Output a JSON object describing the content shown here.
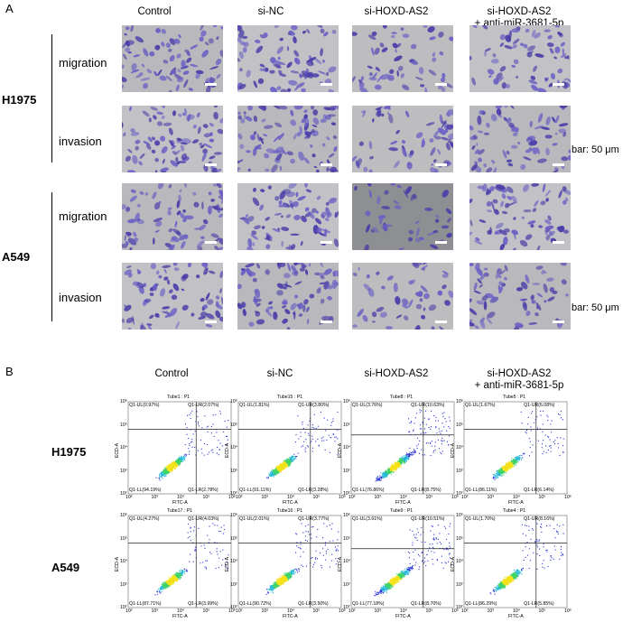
{
  "panelA": {
    "letter": "A",
    "columns": [
      "Control",
      "si-NC",
      "si-HOXD-AS2",
      "si-HOXD-AS2\n+ anti-miR-3681-5p"
    ],
    "column_line1": [
      "Control",
      "si-NC",
      "si-HOXD-AS2",
      "si-HOXD-AS2"
    ],
    "column_line2": [
      "",
      "",
      "",
      "+ anti-miR-3681-5p"
    ],
    "cell_lines": [
      "H1975",
      "A549"
    ],
    "assays": [
      "migration",
      "invasion"
    ],
    "bar_note": "bar: 50 μm",
    "tones": [
      [
        0.55,
        0.6,
        0.3,
        0.4
      ],
      [
        0.6,
        0.7,
        0.35,
        0.5
      ],
      [
        0.55,
        0.5,
        0.15,
        0.5
      ],
      [
        0.55,
        0.6,
        0.2,
        0.45
      ]
    ]
  },
  "panelB": {
    "letter": "B",
    "columns": [
      "Control",
      "si-NC",
      "si-HOXD-AS2",
      "si-HOXD-AS2\n+ anti-miR-3681-5p"
    ],
    "column_line1": [
      "Control",
      "si-NC",
      "si-HOXD-AS2",
      "si-HOXD-AS2"
    ],
    "column_line2": [
      "",
      "",
      "",
      "+ anti-miR-3681-5p"
    ],
    "cell_lines": [
      "H1975",
      "A549"
    ],
    "x_label": "FITC-A",
    "y_label": "ECD-A",
    "x_ticks": [
      "10²",
      "10³",
      "10⁴",
      "10⁵",
      "10⁶"
    ],
    "y_ticks": [
      "10⁶",
      "10⁵",
      "10⁴",
      "10³",
      "10²"
    ],
    "plots": [
      [
        {
          "tube": "Tube1 : P1",
          "ul": "Q1-UL(0.97%)",
          "ur": "Q1-UR(2.07%)",
          "ll": "Q1-LL(94.19%)",
          "lr": "Q1-LR(2.78%)"
        },
        {
          "tube": "Tube15 : P1",
          "ul": "Q1-UL(1.81%)",
          "ur": "Q1-UR(3.80%)",
          "ll": "Q1-LL(91.11%)",
          "lr": "Q1-LR(3.28%)"
        },
        {
          "tube": "Tube8 : P1",
          "ul": "Q1-UL(3.76%)",
          "ur": "Q1-UR(10.63%)",
          "ll": "Q1-LL(76.86%)",
          "lr": "Q1-LR(8.75%)"
        },
        {
          "tube": "Tube5 : P1",
          "ul": "Q1-UL(1.67%)",
          "ur": "Q1-UR(6.08%)",
          "ll": "Q1-LL(86.11%)",
          "lr": "Q1-LR(6.14%)"
        }
      ],
      [
        {
          "tube": "Tube17 : P1",
          "ul": "Q1-UL(4.27%)",
          "ur": "Q1-UR(4.03%)",
          "ll": "Q1-LL(87.71%)",
          "lr": "Q1-LR(3.99%)"
        },
        {
          "tube": "Tube16 : P1",
          "ul": "Q1-UL(2.01%)",
          "ur": "Q1-UR(3.77%)",
          "ll": "Q1-LL(90.72%)",
          "lr": "Q1-LR(3.50%)"
        },
        {
          "tube": "Tube9 : P1",
          "ul": "Q1-UL(3.61%)",
          "ur": "Q1-UR(10.51%)",
          "ll": "Q1-LL(77.18%)",
          "lr": "Q1-LR(8.70%)"
        },
        {
          "tube": "Tube4 : P1",
          "ul": "Q1-UL(1.70%)",
          "ur": "Q1-UR(8.16%)",
          "ll": "Q1-LL(86.29%)",
          "lr": "Q1-LR(5.85%)"
        }
      ]
    ]
  }
}
